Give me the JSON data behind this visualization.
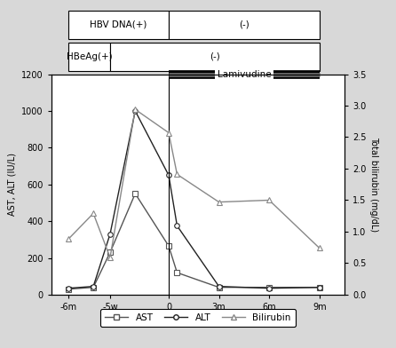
{
  "x_positions": [
    -6,
    -4.5,
    -3.5,
    -2,
    0,
    0.5,
    3,
    6,
    9
  ],
  "x_display_ticks": [
    -6,
    -3.5,
    0,
    3,
    6,
    9
  ],
  "x_display_labels": [
    "-6m",
    "-5w",
    "0",
    "3m",
    "6m",
    "9m"
  ],
  "x_lim": [
    -7,
    10.5
  ],
  "AST": [
    30,
    40,
    230,
    550,
    265,
    120,
    40,
    40,
    40
  ],
  "ALT": [
    35,
    45,
    330,
    1000,
    650,
    375,
    45,
    35,
    40
  ],
  "Bilirubin": [
    0.88,
    1.29,
    0.59,
    2.94,
    2.57,
    1.91,
    1.47,
    1.5,
    0.74
  ],
  "ylim_left": [
    0,
    1200
  ],
  "ylim_right": [
    0,
    3.5
  ],
  "yticks_left": [
    0,
    200,
    400,
    600,
    800,
    1000,
    1200
  ],
  "yticks_right": [
    0,
    0.5,
    1.0,
    1.5,
    2.0,
    2.5,
    3.0,
    3.5
  ],
  "ylabel_left": "AST, ALT (IU/L)",
  "ylabel_right": "Total bilirubin (mg/dL)",
  "lamivudine_x0": 0,
  "lamivudine_x1": 9,
  "hbv_dna_split": 0,
  "hbeag_split": -3.5,
  "x_left_edge": -6,
  "x_right_edge": 9,
  "bg_color": "#d8d8d8",
  "plot_bg_color": "#ffffff",
  "line_color_AST": "#555555",
  "line_color_ALT": "#222222",
  "line_color_Bilirubin": "#888888",
  "marker_AST": "s",
  "marker_ALT": "o",
  "marker_Bilirubin": "^",
  "markersize": 4,
  "linewidth": 1.0
}
